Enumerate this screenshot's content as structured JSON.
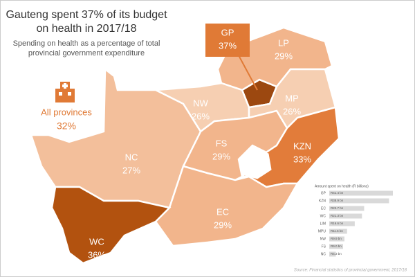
{
  "title": [
    "Gauteng spent 37% of its budget",
    "on health in 2017/18"
  ],
  "subtitle": [
    "Spending on health as a percentage of total",
    "provincial government expenditure"
  ],
  "summary": {
    "label": "All provinces",
    "value": "32%"
  },
  "provinces": [
    {
      "code": "GP",
      "share": "37%",
      "color": "#9c4810"
    },
    {
      "code": "LP",
      "share": "29%",
      "color": "#f2b58c"
    },
    {
      "code": "NW",
      "share": "26%",
      "color": "#f6cfb2"
    },
    {
      "code": "MP",
      "share": "26%",
      "color": "#f6cfb2"
    },
    {
      "code": "FS",
      "share": "29%",
      "color": "#f2b58c"
    },
    {
      "code": "KZN",
      "share": "33%",
      "color": "#e27c3a"
    },
    {
      "code": "NC",
      "share": "27%",
      "color": "#f3bf9b"
    },
    {
      "code": "EC",
      "share": "29%",
      "color": "#f2b58c"
    },
    {
      "code": "WC",
      "share": "36%",
      "color": "#b2520f"
    }
  ],
  "amounts": {
    "title": "Amount spent on health (R billions)",
    "categories": [
      "GP",
      "KZN",
      "EC",
      "WC",
      "LIM",
      "MPU",
      "NW",
      "FS",
      "NC"
    ],
    "values": [
      41.4,
      38.9,
      22.7,
      21.3,
      16.6,
      11.6,
      9.9,
      9.0,
      4.3
    ],
    "value_labels": [
      "R41.4 bn",
      "R38.9 bn",
      "R22.7 bn",
      "R21.3 bn",
      "R16.6 bn",
      "R11.6 bn",
      "R9.9 bn",
      "R9.0 bn",
      "R4.3 bn"
    ],
    "color": "#d9d9d9"
  },
  "source": "Source: Financial statistics of provincial government, 2017/18"
}
